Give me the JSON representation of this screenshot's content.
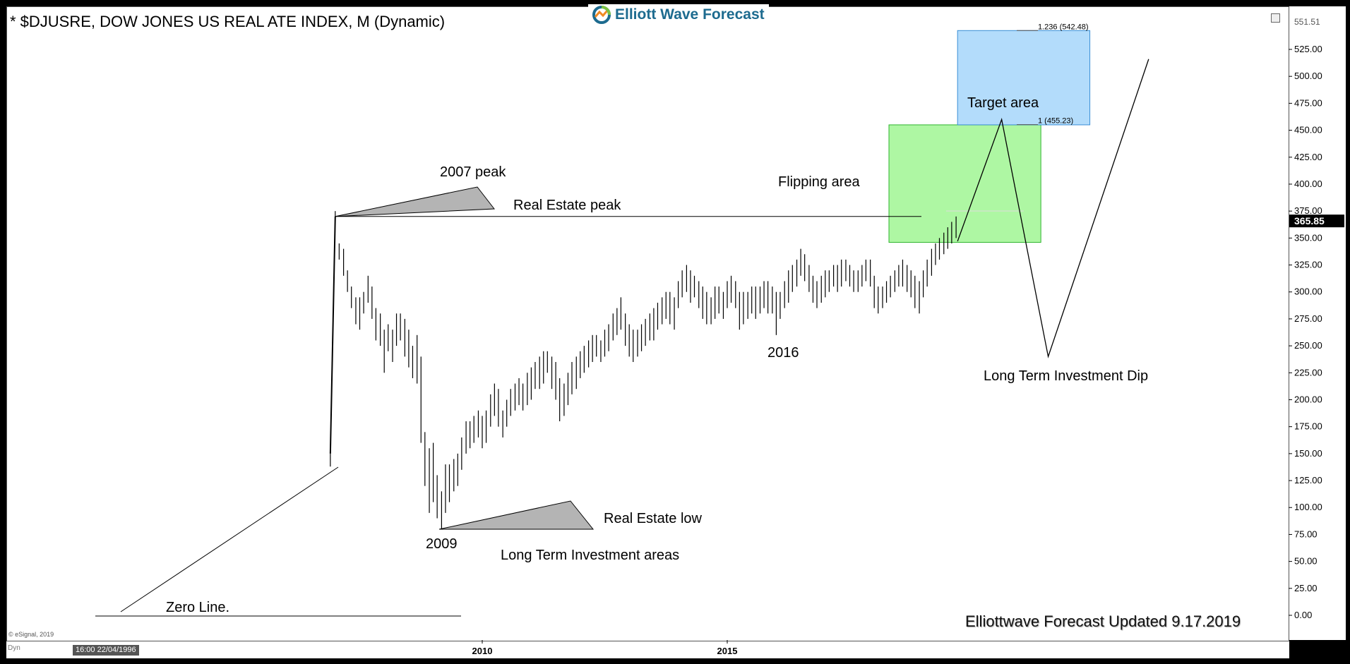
{
  "header": {
    "title": "* $DJUSRE, DOW JONES US REAL ATE INDEX, M (Dynamic)",
    "logo_text": "Elliott Wave Forecast"
  },
  "footer": {
    "copyright": "© eSignal, 2019",
    "dyn_label": "Dyn",
    "time_badge": "16:00 22/04/1996",
    "updated_text": "Elliottwave Forecast Updated 9.17.2019"
  },
  "colors": {
    "green_zone": "#aef7a3",
    "blue_zone": "#b3dcfb",
    "triangle_fill": "#b4b4b4",
    "price_badge": "#000000"
  },
  "chart_data": {
    "type": "ohlc",
    "title": "* $DJUSRE, DOW JONES US REAL ATE INDEX, M (Dynamic)",
    "xlabel": "",
    "ylabel": "",
    "ylim": [
      0,
      551.51
    ],
    "y_ticks": [
      "0.00",
      "25.00",
      "50.00",
      "75.00",
      "100.00",
      "125.00",
      "150.00",
      "175.00",
      "200.00",
      "225.00",
      "250.00",
      "275.00",
      "300.00",
      "325.00",
      "350.00",
      "375.00",
      "400.00",
      "425.00",
      "450.00",
      "475.00",
      "500.00",
      "525.00"
    ],
    "y_top_label": "551.51",
    "last_price_label": "365.85",
    "last_price": 365.85,
    "x_ticks": [
      "2010",
      "2015"
    ],
    "x_tick_years": [
      2010,
      2015
    ],
    "grid": false,
    "series": [
      {
        "bars": [
          [
            2006.9,
            138,
            150
          ],
          [
            2007.0,
            360,
            375
          ],
          [
            2007.08,
            330,
            345
          ],
          [
            2007.17,
            315,
            340
          ],
          [
            2007.25,
            300,
            320
          ],
          [
            2007.33,
            285,
            305
          ],
          [
            2007.42,
            270,
            295
          ],
          [
            2007.5,
            265,
            295
          ],
          [
            2007.58,
            280,
            300
          ],
          [
            2007.67,
            290,
            315
          ],
          [
            2007.75,
            275,
            305
          ],
          [
            2007.83,
            255,
            285
          ],
          [
            2007.92,
            250,
            280
          ],
          [
            2008.0,
            225,
            265
          ],
          [
            2008.08,
            245,
            270
          ],
          [
            2008.17,
            235,
            265
          ],
          [
            2008.25,
            250,
            280
          ],
          [
            2008.33,
            255,
            280
          ],
          [
            2008.42,
            240,
            275
          ],
          [
            2008.5,
            230,
            265
          ],
          [
            2008.58,
            220,
            250
          ],
          [
            2008.67,
            215,
            260
          ],
          [
            2008.75,
            160,
            240
          ],
          [
            2008.83,
            120,
            170
          ],
          [
            2008.92,
            95,
            155
          ],
          [
            2009.0,
            105,
            160
          ],
          [
            2009.08,
            90,
            130
          ],
          [
            2009.17,
            80,
            115
          ],
          [
            2009.25,
            95,
            140
          ],
          [
            2009.33,
            105,
            140
          ],
          [
            2009.42,
            115,
            145
          ],
          [
            2009.5,
            120,
            150
          ],
          [
            2009.58,
            135,
            165
          ],
          [
            2009.67,
            150,
            180
          ],
          [
            2009.75,
            155,
            180
          ],
          [
            2009.83,
            160,
            185
          ],
          [
            2009.92,
            165,
            190
          ],
          [
            2010.0,
            155,
            185
          ],
          [
            2010.08,
            160,
            190
          ],
          [
            2010.17,
            175,
            205
          ],
          [
            2010.25,
            185,
            215
          ],
          [
            2010.33,
            175,
            210
          ],
          [
            2010.42,
            165,
            190
          ],
          [
            2010.5,
            175,
            200
          ],
          [
            2010.58,
            185,
            210
          ],
          [
            2010.67,
            190,
            215
          ],
          [
            2010.75,
            195,
            220
          ],
          [
            2010.83,
            190,
            215
          ],
          [
            2010.92,
            195,
            225
          ],
          [
            2011.0,
            200,
            230
          ],
          [
            2011.08,
            210,
            235
          ],
          [
            2011.17,
            210,
            240
          ],
          [
            2011.25,
            215,
            245
          ],
          [
            2011.33,
            225,
            245
          ],
          [
            2011.42,
            210,
            240
          ],
          [
            2011.5,
            200,
            235
          ],
          [
            2011.58,
            180,
            220
          ],
          [
            2011.67,
            185,
            215
          ],
          [
            2011.75,
            195,
            225
          ],
          [
            2011.83,
            205,
            235
          ],
          [
            2011.92,
            210,
            240
          ],
          [
            2012.0,
            220,
            245
          ],
          [
            2012.08,
            225,
            250
          ],
          [
            2012.17,
            230,
            255
          ],
          [
            2012.25,
            235,
            260
          ],
          [
            2012.33,
            240,
            260
          ],
          [
            2012.42,
            235,
            255
          ],
          [
            2012.5,
            240,
            265
          ],
          [
            2012.58,
            245,
            270
          ],
          [
            2012.67,
            255,
            280
          ],
          [
            2012.75,
            260,
            285
          ],
          [
            2012.83,
            265,
            295
          ],
          [
            2012.92,
            250,
            280
          ],
          [
            2013.0,
            240,
            270
          ],
          [
            2013.08,
            235,
            265
          ],
          [
            2013.17,
            240,
            265
          ],
          [
            2013.25,
            245,
            270
          ],
          [
            2013.33,
            250,
            275
          ],
          [
            2013.42,
            255,
            280
          ],
          [
            2013.5,
            255,
            285
          ],
          [
            2013.58,
            265,
            290
          ],
          [
            2013.67,
            270,
            295
          ],
          [
            2013.75,
            275,
            300
          ],
          [
            2013.83,
            270,
            300
          ],
          [
            2013.92,
            265,
            295
          ],
          [
            2014.0,
            285,
            310
          ],
          [
            2014.08,
            295,
            320
          ],
          [
            2014.17,
            300,
            325
          ],
          [
            2014.25,
            290,
            320
          ],
          [
            2014.33,
            295,
            315
          ],
          [
            2014.42,
            285,
            310
          ],
          [
            2014.5,
            275,
            305
          ],
          [
            2014.58,
            270,
            300
          ],
          [
            2014.67,
            270,
            295
          ],
          [
            2014.75,
            275,
            305
          ],
          [
            2014.83,
            280,
            305
          ],
          [
            2014.92,
            275,
            300
          ],
          [
            2015.0,
            285,
            310
          ],
          [
            2015.08,
            290,
            315
          ],
          [
            2015.17,
            285,
            310
          ],
          [
            2015.25,
            265,
            300
          ],
          [
            2015.33,
            270,
            300
          ],
          [
            2015.42,
            275,
            300
          ],
          [
            2015.5,
            280,
            305
          ],
          [
            2015.58,
            275,
            305
          ],
          [
            2015.67,
            280,
            305
          ],
          [
            2015.75,
            285,
            310
          ],
          [
            2015.83,
            280,
            310
          ],
          [
            2015.92,
            280,
            305
          ],
          [
            2016.0,
            260,
            300
          ],
          [
            2016.08,
            275,
            300
          ],
          [
            2016.17,
            285,
            310
          ],
          [
            2016.25,
            290,
            320
          ],
          [
            2016.33,
            300,
            325
          ],
          [
            2016.42,
            305,
            330
          ],
          [
            2016.5,
            315,
            340
          ],
          [
            2016.58,
            310,
            335
          ],
          [
            2016.67,
            300,
            325
          ],
          [
            2016.75,
            290,
            315
          ],
          [
            2016.83,
            285,
            310
          ],
          [
            2016.92,
            290,
            315
          ],
          [
            2017.0,
            295,
            320
          ],
          [
            2017.08,
            300,
            320
          ],
          [
            2017.17,
            305,
            325
          ],
          [
            2017.25,
            300,
            325
          ],
          [
            2017.33,
            305,
            330
          ],
          [
            2017.42,
            310,
            330
          ],
          [
            2017.5,
            305,
            325
          ],
          [
            2017.58,
            300,
            320
          ],
          [
            2017.67,
            300,
            320
          ],
          [
            2017.75,
            305,
            325
          ],
          [
            2017.83,
            310,
            330
          ],
          [
            2017.92,
            305,
            330
          ],
          [
            2018.0,
            285,
            315
          ],
          [
            2018.08,
            280,
            305
          ],
          [
            2018.17,
            285,
            305
          ],
          [
            2018.25,
            290,
            310
          ],
          [
            2018.33,
            295,
            315
          ],
          [
            2018.42,
            300,
            320
          ],
          [
            2018.5,
            305,
            325
          ],
          [
            2018.58,
            305,
            330
          ],
          [
            2018.67,
            300,
            325
          ],
          [
            2018.75,
            295,
            320
          ],
          [
            2018.83,
            285,
            315
          ],
          [
            2018.92,
            280,
            310
          ],
          [
            2019.0,
            295,
            320
          ],
          [
            2019.08,
            305,
            330
          ],
          [
            2019.17,
            315,
            340
          ],
          [
            2019.25,
            325,
            345
          ],
          [
            2019.33,
            330,
            350
          ],
          [
            2019.42,
            335,
            355
          ],
          [
            2019.5,
            340,
            360
          ],
          [
            2019.58,
            345,
            365
          ],
          [
            2019.67,
            350,
            370
          ]
        ]
      }
    ],
    "levels": [
      {
        "label": "1.236 (542.48)",
        "value": 542.48
      },
      {
        "label": "1 (455.23)",
        "value": 455.23
      }
    ],
    "zones": [
      {
        "name": "Flipping area",
        "x0": 2018.3,
        "x1": 2021.4,
        "y0": 346,
        "y1": 455
      },
      {
        "name": "Target area",
        "x0": 2019.7,
        "x1": 2022.4,
        "y0": 455,
        "y1": 542.48
      }
    ],
    "projection": [
      [
        2019.7,
        347
      ],
      [
        2020.6,
        460
      ],
      [
        2021.55,
        240
      ],
      [
        2023.6,
        516
      ]
    ],
    "annotations": {
      "peak_2007": "2007 peak",
      "real_estate_peak": "Real Estate peak",
      "year_2009": "2009",
      "real_estate_low": "Real Estate low",
      "long_term_areas": "Long Term  Investment areas",
      "zero_line": "Zero Line.",
      "year_2016": "2016",
      "flipping_area": "Flipping area",
      "target_area": "Target area",
      "long_term_dip": "Long Term Investment Dip"
    }
  }
}
